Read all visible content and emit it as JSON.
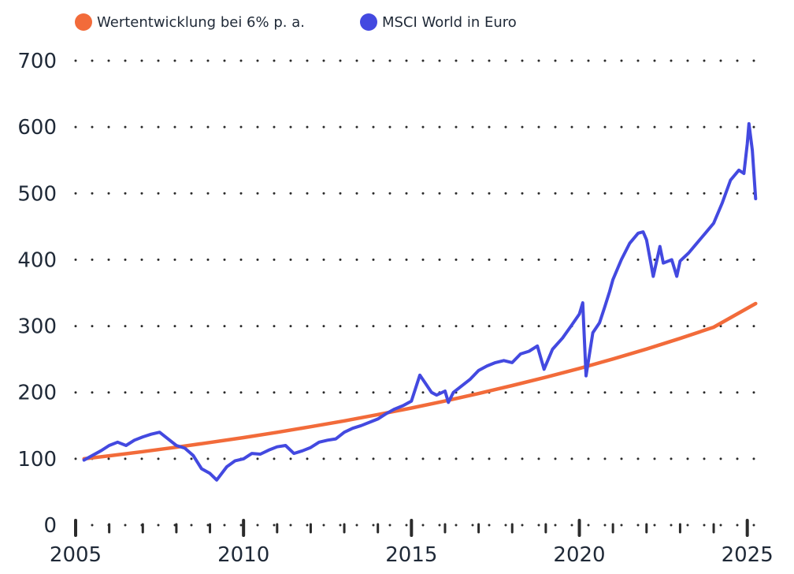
{
  "chart_data": {
    "type": "line",
    "title": "",
    "xlabel": "",
    "ylabel": "",
    "xlim": [
      2005,
      2025.5
    ],
    "ylim": [
      0,
      700
    ],
    "yticks": [
      "0",
      "100",
      "200",
      "300",
      "400",
      "500",
      "600",
      "700"
    ],
    "xticks": [
      "2005",
      "2010",
      "2015",
      "2020",
      "2025"
    ],
    "grid": "horizontal dotted",
    "legend_position": "top-left",
    "series": [
      {
        "name": "Wertentwicklung bei 6% p. a.",
        "color": "#f26b3a",
        "x": [
          2005.25,
          2006,
          2007,
          2008,
          2009,
          2010,
          2011,
          2012,
          2013,
          2014,
          2015,
          2016,
          2017,
          2018,
          2019,
          2020,
          2021,
          2022,
          2023,
          2024,
          2025.25
        ],
        "y": [
          100,
          104.5,
          110.8,
          117.4,
          124.5,
          131.9,
          139.9,
          148.3,
          157.1,
          166.6,
          176.5,
          187.1,
          198.4,
          210.3,
          222.9,
          236.2,
          250.4,
          265.4,
          281.4,
          298.3,
          334
        ]
      },
      {
        "name": "MSCI World in Euro",
        "color": "#4349e0",
        "x": [
          2005.25,
          2005.5,
          2005.75,
          2006,
          2006.25,
          2006.5,
          2006.75,
          2007,
          2007.25,
          2007.5,
          2007.75,
          2008,
          2008.25,
          2008.5,
          2008.75,
          2009.0,
          2009.2,
          2009.5,
          2009.75,
          2010,
          2010.25,
          2010.5,
          2010.75,
          2011,
          2011.25,
          2011.5,
          2011.75,
          2012,
          2012.25,
          2012.5,
          2012.75,
          2013,
          2013.25,
          2013.5,
          2013.75,
          2014,
          2014.25,
          2014.5,
          2014.75,
          2015,
          2015.25,
          2015.4,
          2015.6,
          2015.75,
          2016,
          2016.1,
          2016.25,
          2016.5,
          2016.75,
          2017,
          2017.25,
          2017.5,
          2017.75,
          2018,
          2018.25,
          2018.5,
          2018.75,
          2018.95,
          2019.2,
          2019.5,
          2019.75,
          2020,
          2020.1,
          2020.2,
          2020.4,
          2020.6,
          2020.75,
          2020.9,
          2021,
          2021.25,
          2021.5,
          2021.75,
          2021.9,
          2022,
          2022.2,
          2022.4,
          2022.5,
          2022.75,
          2022.9,
          2023,
          2023.25,
          2023.5,
          2023.75,
          2024,
          2024.25,
          2024.5,
          2024.75,
          2024.9,
          2025,
          2025.05,
          2025.15,
          2025.25
        ],
        "y": [
          98,
          105,
          112,
          120,
          125,
          120,
          128,
          133,
          137,
          140,
          130,
          120,
          116,
          105,
          85,
          78,
          68,
          88,
          97,
          100,
          108,
          107,
          113,
          118,
          120,
          108,
          112,
          117,
          125,
          128,
          130,
          140,
          146,
          150,
          155,
          160,
          168,
          175,
          180,
          187,
          226,
          215,
          200,
          196,
          202,
          185,
          200,
          210,
          220,
          233,
          240,
          245,
          248,
          245,
          258,
          262,
          270,
          235,
          265,
          282,
          300,
          318,
          335,
          225,
          290,
          305,
          328,
          352,
          370,
          400,
          425,
          440,
          442,
          430,
          375,
          420,
          395,
          400,
          375,
          398,
          410,
          425,
          440,
          455,
          485,
          520,
          535,
          530,
          575,
          605,
          565,
          492
        ]
      }
    ]
  }
}
